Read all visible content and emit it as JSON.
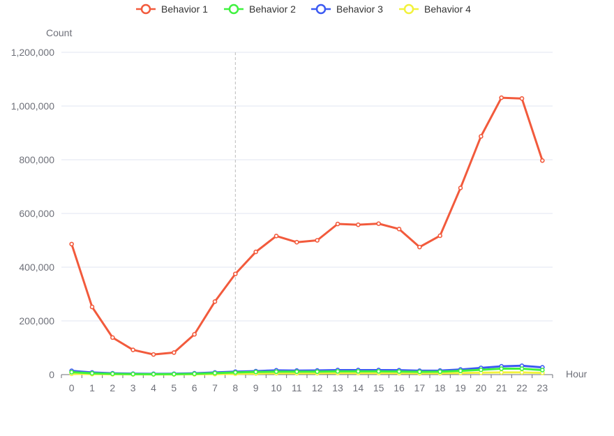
{
  "chart_data": {
    "type": "line",
    "title": "",
    "xlabel": "Hour",
    "ylabel": "Count",
    "ylim": [
      0,
      1200000
    ],
    "y_ticks": [
      0,
      200000,
      400000,
      600000,
      800000,
      1000000,
      1200000
    ],
    "y_tick_labels": [
      "0",
      "200,000",
      "400,000",
      "600,000",
      "800,000",
      "1,000,000",
      "1,200,000"
    ],
    "categories": [
      "0",
      "1",
      "2",
      "3",
      "4",
      "5",
      "6",
      "7",
      "8",
      "9",
      "10",
      "11",
      "12",
      "13",
      "14",
      "15",
      "16",
      "17",
      "18",
      "19",
      "20",
      "21",
      "22",
      "23"
    ],
    "grid": true,
    "legend_position": "top-center",
    "axis_pointer_category": "8",
    "series": [
      {
        "name": "Behavior 1",
        "color": "#f25a3c",
        "values": [
          486000,
          252000,
          138000,
          92000,
          75000,
          82000,
          150000,
          272000,
          375000,
          457000,
          516000,
          493000,
          500000,
          561000,
          558000,
          562000,
          542000,
          475000,
          517000,
          695000,
          887000,
          1031000,
          1028000,
          797000
        ]
      },
      {
        "name": "Behavior 2",
        "color": "#3ff23f",
        "values": [
          9000,
          5000,
          3000,
          2000,
          1500,
          1800,
          3000,
          5500,
          8000,
          10000,
          11000,
          11000,
          11000,
          12000,
          12000,
          12000,
          11500,
          10500,
          11000,
          14000,
          18000,
          22000,
          22000,
          17000
        ]
      },
      {
        "name": "Behavior 3",
        "color": "#3c5af2",
        "values": [
          14000,
          8000,
          5000,
          3500,
          3000,
          3200,
          5000,
          8000,
          11000,
          13000,
          16000,
          15000,
          15500,
          17000,
          17000,
          17000,
          16500,
          14500,
          15000,
          19000,
          25000,
          31000,
          33000,
          27000
        ]
      },
      {
        "name": "Behavior 4",
        "color": "#f2f23c",
        "values": [
          3000,
          2000,
          1200,
          900,
          800,
          800,
          1200,
          2000,
          3000,
          4000,
          5000,
          5000,
          5000,
          5500,
          5500,
          5500,
          5200,
          4800,
          5000,
          6000,
          7000,
          8000,
          8000,
          6500
        ]
      }
    ]
  }
}
